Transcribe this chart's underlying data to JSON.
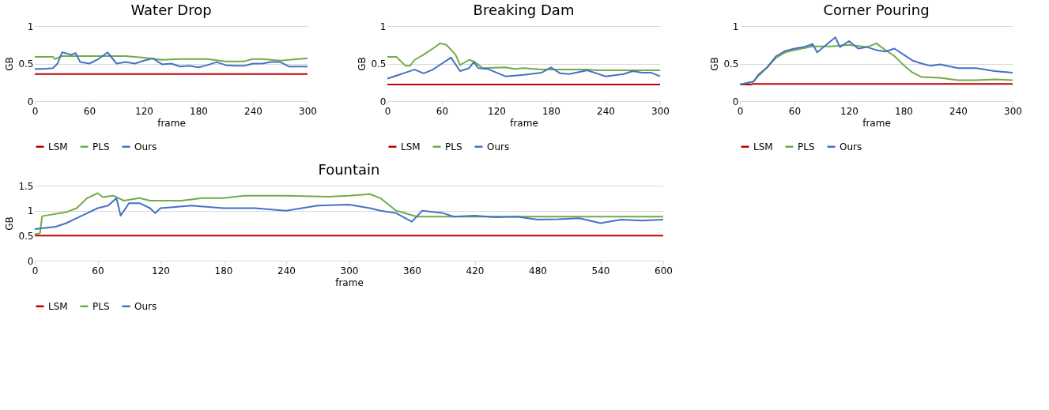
{
  "chart_data": [
    {
      "type": "line",
      "title": "Water Drop",
      "xlabel": "frame",
      "ylabel": "GB",
      "xlim": [
        0,
        300
      ],
      "xticks": [
        0,
        60,
        120,
        180,
        240,
        300
      ],
      "ylim": [
        0,
        1
      ],
      "yticks": [
        0,
        0.5,
        1
      ],
      "grid": "y",
      "legend": "bottom",
      "series": [
        {
          "name": "LSM",
          "color": "#c00000",
          "x": [
            0,
            300
          ],
          "values": [
            0.36,
            0.36
          ]
        },
        {
          "name": "PLS",
          "color": "#70ad47",
          "x": [
            0,
            20,
            22,
            30,
            80,
            100,
            120,
            140,
            160,
            190,
            210,
            230,
            240,
            250,
            270,
            280,
            300
          ],
          "values": [
            0.59,
            0.59,
            0.56,
            0.6,
            0.6,
            0.6,
            0.58,
            0.55,
            0.56,
            0.56,
            0.53,
            0.53,
            0.56,
            0.56,
            0.54,
            0.55,
            0.57
          ]
        },
        {
          "name": "Ours",
          "color": "#4472c4",
          "x": [
            0,
            10,
            20,
            25,
            30,
            40,
            45,
            50,
            60,
            70,
            80,
            90,
            100,
            110,
            120,
            130,
            140,
            150,
            160,
            170,
            180,
            190,
            200,
            210,
            220,
            230,
            240,
            250,
            260,
            270,
            280,
            290,
            300
          ],
          "values": [
            0.43,
            0.43,
            0.44,
            0.5,
            0.65,
            0.62,
            0.64,
            0.52,
            0.5,
            0.56,
            0.65,
            0.5,
            0.52,
            0.5,
            0.54,
            0.57,
            0.49,
            0.5,
            0.46,
            0.47,
            0.45,
            0.48,
            0.52,
            0.48,
            0.47,
            0.47,
            0.5,
            0.5,
            0.52,
            0.52,
            0.46,
            0.46,
            0.46
          ]
        }
      ]
    },
    {
      "type": "line",
      "title": "Breaking Dam",
      "xlabel": "frame",
      "ylabel": "GB",
      "xlim": [
        0,
        300
      ],
      "xticks": [
        0,
        60,
        120,
        180,
        240,
        300
      ],
      "ylim": [
        0,
        1
      ],
      "yticks": [
        0,
        0.5,
        1
      ],
      "grid": "y",
      "legend": "bottom",
      "series": [
        {
          "name": "LSM",
          "color": "#c00000",
          "x": [
            0,
            300
          ],
          "values": [
            0.22,
            0.22
          ]
        },
        {
          "name": "PLS",
          "color": "#70ad47",
          "x": [
            0,
            10,
            20,
            25,
            30,
            40,
            50,
            58,
            65,
            75,
            80,
            90,
            95,
            105,
            130,
            140,
            150,
            170,
            220,
            230,
            300
          ],
          "values": [
            0.59,
            0.59,
            0.47,
            0.47,
            0.55,
            0.62,
            0.7,
            0.77,
            0.75,
            0.62,
            0.48,
            0.55,
            0.53,
            0.44,
            0.45,
            0.43,
            0.44,
            0.42,
            0.42,
            0.41,
            0.41
          ]
        },
        {
          "name": "Ours",
          "color": "#4472c4",
          "x": [
            0,
            10,
            20,
            30,
            40,
            50,
            60,
            70,
            80,
            90,
            95,
            100,
            110,
            120,
            130,
            150,
            170,
            180,
            190,
            200,
            220,
            240,
            260,
            270,
            280,
            290,
            300
          ],
          "values": [
            0.3,
            0.34,
            0.38,
            0.42,
            0.37,
            0.42,
            0.5,
            0.58,
            0.4,
            0.44,
            0.52,
            0.44,
            0.43,
            0.38,
            0.33,
            0.35,
            0.38,
            0.45,
            0.37,
            0.36,
            0.41,
            0.33,
            0.36,
            0.4,
            0.38,
            0.38,
            0.33
          ]
        }
      ]
    },
    {
      "type": "line",
      "title": "Corner Pouring",
      "xlabel": "frame",
      "ylabel": "GB",
      "xlim": [
        0,
        300
      ],
      "xticks": [
        0,
        60,
        120,
        180,
        240,
        300
      ],
      "ylim": [
        0,
        1
      ],
      "yticks": [
        0,
        0.5,
        1
      ],
      "grid": "y",
      "legend": "bottom",
      "series": [
        {
          "name": "LSM",
          "color": "#c00000",
          "x": [
            0,
            12,
            14,
            300
          ],
          "values": [
            0.22,
            0.22,
            0.23,
            0.23
          ]
        },
        {
          "name": "PLS",
          "color": "#70ad47",
          "x": [
            0,
            15,
            20,
            30,
            40,
            50,
            60,
            80,
            100,
            120,
            140,
            150,
            160,
            170,
            180,
            190,
            200,
            220,
            240,
            260,
            280,
            300
          ],
          "values": [
            0.22,
            0.26,
            0.33,
            0.45,
            0.58,
            0.65,
            0.68,
            0.73,
            0.73,
            0.75,
            0.72,
            0.77,
            0.68,
            0.6,
            0.48,
            0.38,
            0.32,
            0.31,
            0.28,
            0.28,
            0.29,
            0.28
          ]
        },
        {
          "name": "Ours",
          "color": "#4472c4",
          "x": [
            0,
            15,
            20,
            30,
            40,
            50,
            60,
            70,
            80,
            85,
            100,
            105,
            110,
            120,
            130,
            140,
            150,
            160,
            170,
            180,
            190,
            200,
            210,
            220,
            240,
            260,
            280,
            300
          ],
          "values": [
            0.22,
            0.26,
            0.35,
            0.45,
            0.6,
            0.67,
            0.7,
            0.72,
            0.76,
            0.65,
            0.8,
            0.85,
            0.72,
            0.8,
            0.7,
            0.72,
            0.68,
            0.66,
            0.7,
            0.62,
            0.54,
            0.5,
            0.47,
            0.49,
            0.44,
            0.44,
            0.4,
            0.38
          ]
        }
      ]
    },
    {
      "type": "line",
      "title": "Fountain",
      "xlabel": "frame",
      "ylabel": "GB",
      "xlim": [
        0,
        600
      ],
      "xticks": [
        0,
        60,
        120,
        180,
        240,
        300,
        360,
        420,
        480,
        540,
        600
      ],
      "ylim": [
        0,
        1.5
      ],
      "yticks": [
        0,
        0.5,
        1,
        1.5
      ],
      "grid": "y",
      "legend": "bottom",
      "series": [
        {
          "name": "LSM",
          "color": "#c00000",
          "x": [
            0,
            600
          ],
          "values": [
            0.5,
            0.5
          ]
        },
        {
          "name": "PLS",
          "color": "#70ad47",
          "x": [
            0,
            5,
            7,
            30,
            40,
            50,
            60,
            65,
            75,
            85,
            100,
            110,
            140,
            160,
            180,
            200,
            240,
            280,
            300,
            320,
            330,
            345,
            365,
            420,
            600
          ],
          "values": [
            0.53,
            0.55,
            0.89,
            0.97,
            1.05,
            1.25,
            1.35,
            1.27,
            1.3,
            1.2,
            1.25,
            1.2,
            1.2,
            1.25,
            1.25,
            1.3,
            1.3,
            1.28,
            1.3,
            1.33,
            1.25,
            1.0,
            0.88,
            0.88,
            0.88
          ]
        },
        {
          "name": "Ours",
          "color": "#4472c4",
          "x": [
            0,
            20,
            30,
            40,
            50,
            60,
            70,
            78,
            82,
            90,
            100,
            110,
            115,
            120,
            150,
            180,
            210,
            240,
            270,
            300,
            320,
            330,
            345,
            360,
            370,
            390,
            400,
            420,
            440,
            460,
            480,
            500,
            520,
            540,
            560,
            580,
            600
          ],
          "values": [
            0.63,
            0.68,
            0.75,
            0.85,
            0.95,
            1.05,
            1.1,
            1.25,
            0.9,
            1.15,
            1.15,
            1.05,
            0.95,
            1.05,
            1.1,
            1.05,
            1.05,
            1.0,
            1.1,
            1.12,
            1.05,
            1.0,
            0.95,
            0.78,
            1.0,
            0.95,
            0.88,
            0.9,
            0.87,
            0.88,
            0.82,
            0.83,
            0.85,
            0.75,
            0.82,
            0.8,
            0.82
          ]
        }
      ]
    }
  ]
}
